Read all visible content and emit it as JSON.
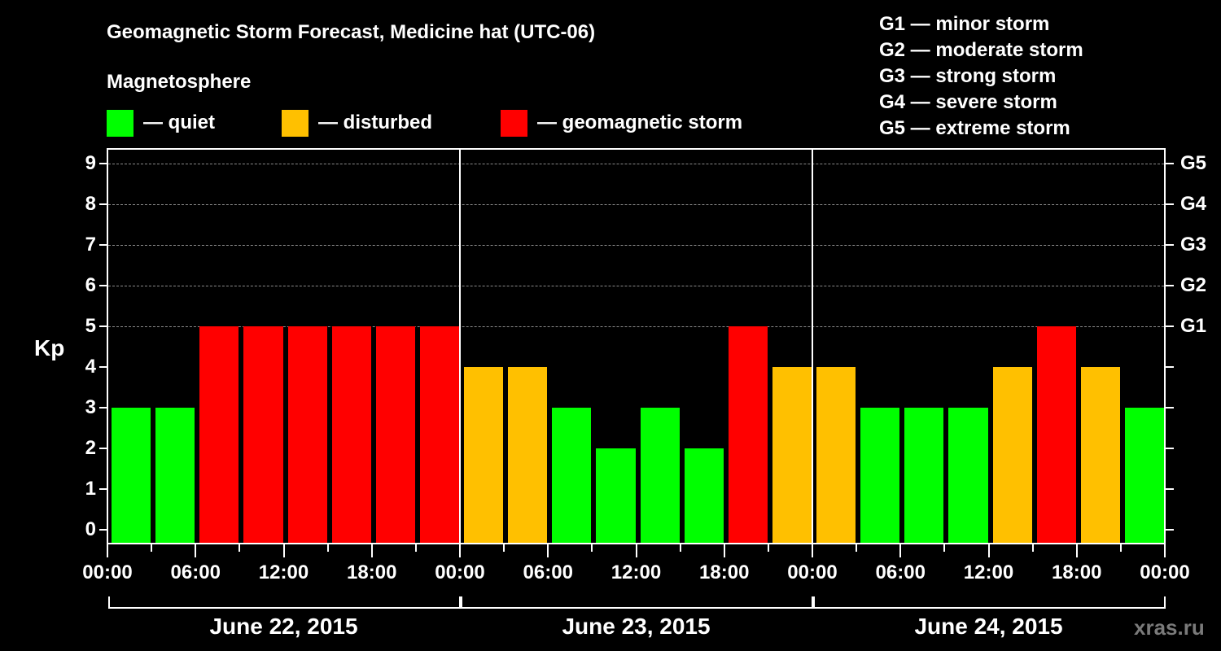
{
  "chart_data": {
    "type": "bar",
    "title": "Geomagnetic Storm Forecast, Medicine hat (UTC-06)",
    "subtitle": "Magnetosphere",
    "ylabel": "Kp",
    "xlabel": "",
    "ylim": [
      0,
      9
    ],
    "yticks": [
      "0",
      "1",
      "2",
      "3",
      "4",
      "5",
      "6",
      "7",
      "8",
      "9"
    ],
    "right_axis_ticks": [
      {
        "kp": 5,
        "label": "G1"
      },
      {
        "kp": 6,
        "label": "G2"
      },
      {
        "kp": 7,
        "label": "G3"
      },
      {
        "kp": 8,
        "label": "G4"
      },
      {
        "kp": 9,
        "label": "G5"
      }
    ],
    "grid": "dashed horizontal at Kp 5-9",
    "legend": [
      {
        "label": "— quiet",
        "color": "#00ff00"
      },
      {
        "label": "— disturbed",
        "color": "#ffc000"
      },
      {
        "label": "— geomagnetic storm",
        "color": "#ff0000"
      }
    ],
    "storm_scale": [
      "G1 — minor storm",
      "G2 — moderate storm",
      "G3 — strong storm",
      "G4 — severe storm",
      "G5 — extreme storm"
    ],
    "x_tick_labels": [
      "00:00",
      "06:00",
      "12:00",
      "18:00",
      "00:00",
      "06:00",
      "12:00",
      "18:00",
      "00:00",
      "06:00",
      "12:00",
      "18:00",
      "00:00"
    ],
    "days": [
      "June 22, 2015",
      "June 23, 2015",
      "June 24, 2015"
    ],
    "categories": [
      "Jun22 00-03",
      "Jun22 03-06",
      "Jun22 06-09",
      "Jun22 09-12",
      "Jun22 12-15",
      "Jun22 15-18",
      "Jun22 18-21",
      "Jun22 21-24",
      "Jun23 00-03",
      "Jun23 03-06",
      "Jun23 06-09",
      "Jun23 09-12",
      "Jun23 12-15",
      "Jun23 15-18",
      "Jun23 18-21",
      "Jun23 21-24",
      "Jun24 00-03",
      "Jun24 03-06",
      "Jun24 06-09",
      "Jun24 09-12",
      "Jun24 12-15",
      "Jun24 15-18",
      "Jun24 18-21",
      "Jun24 21-24"
    ],
    "values": [
      3,
      3,
      5,
      5,
      5,
      5,
      5,
      5,
      4,
      4,
      3,
      2,
      3,
      2,
      5,
      4,
      4,
      3,
      3,
      3,
      4,
      5,
      4,
      3
    ],
    "colors": {
      "quiet": "#00ff00",
      "disturbed": "#ffc000",
      "storm": "#ff0000"
    }
  },
  "header": {
    "title": "Geomagnetic Storm Forecast, Medicine hat (UTC-06)",
    "subtitle": "Magnetosphere",
    "legend": [
      {
        "label": "— quiet",
        "color": "#00ff00"
      },
      {
        "label": "— disturbed",
        "color": "#ffc000"
      },
      {
        "label": "— geomagnetic storm",
        "color": "#ff0000"
      }
    ]
  },
  "storm_scale": [
    "G1 — minor storm",
    "G2 — moderate storm",
    "G3 — strong storm",
    "G4 — severe storm",
    "G5 — extreme storm"
  ],
  "axis": {
    "kp_label": "Kp"
  },
  "watermark": "xras.ru"
}
